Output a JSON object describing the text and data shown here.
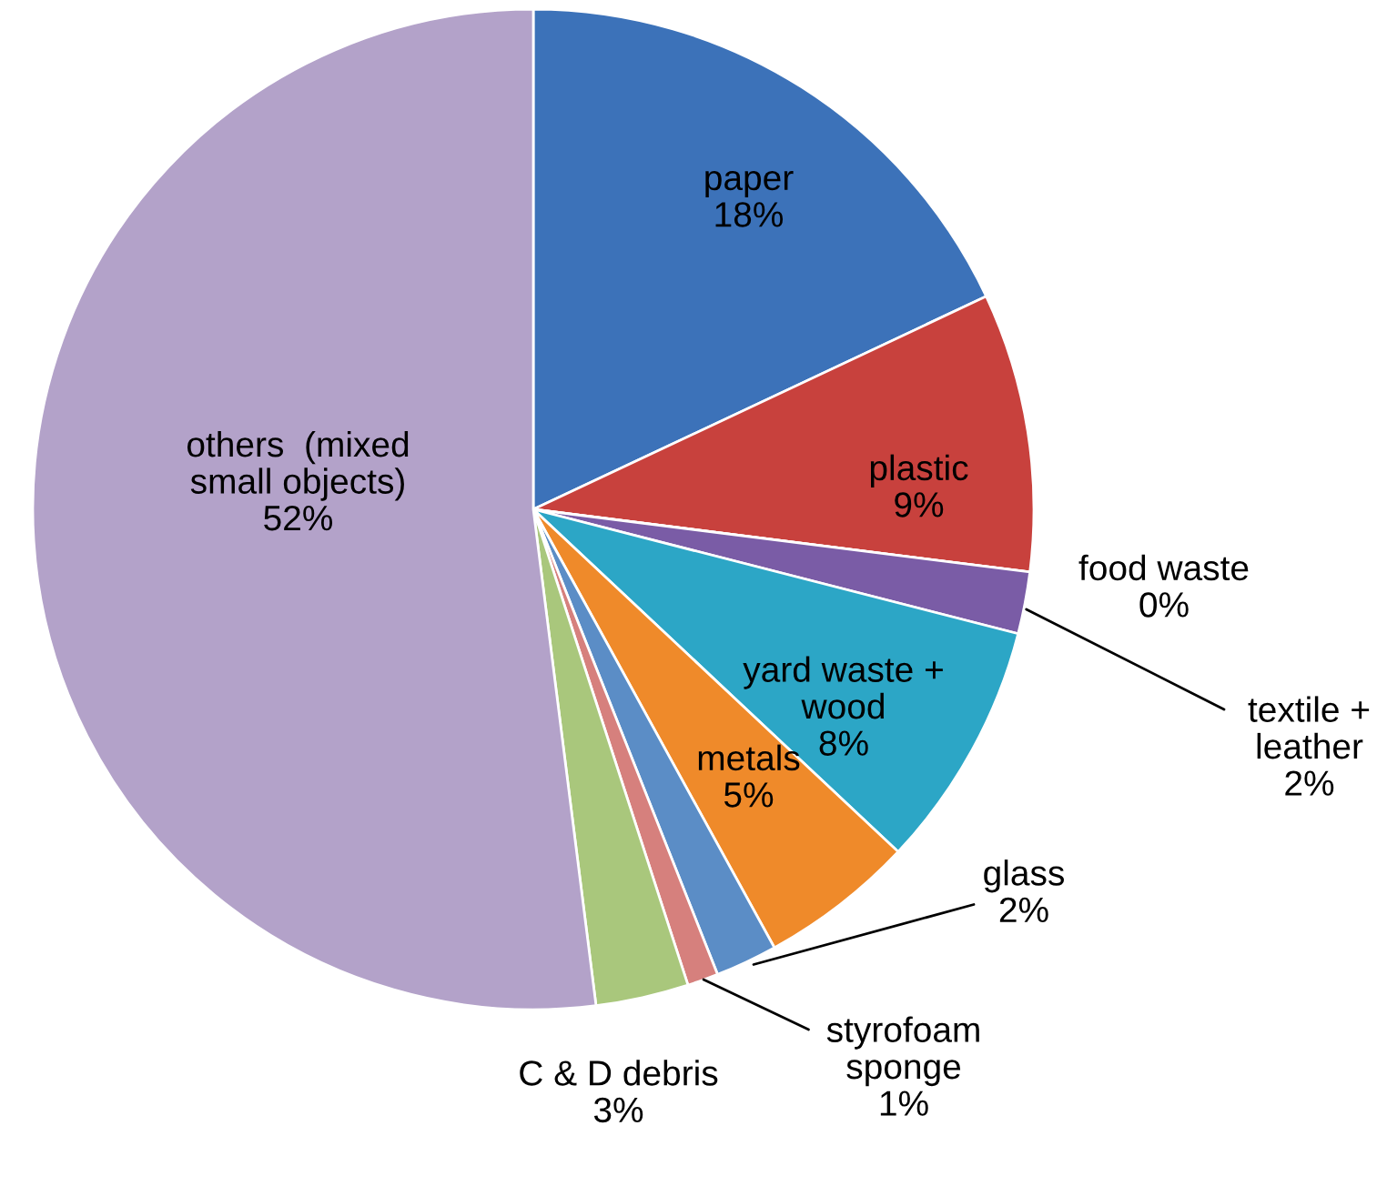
{
  "chart_data": {
    "type": "pie",
    "categories": [
      "paper",
      "plastic",
      "food waste",
      "textile +\nleather",
      "yard waste +\nwood",
      "metals",
      "glass",
      "styrofoam\nsponge",
      "C & D debris",
      "others  (mixed\nsmall objects)"
    ],
    "values": [
      18,
      9,
      0,
      2,
      8,
      5,
      2,
      1,
      3,
      52
    ],
    "value_labels": [
      "18%",
      "9%",
      "0%",
      "2%",
      "8%",
      "5%",
      "2%",
      "1%",
      "3%",
      "52%"
    ],
    "colors": [
      "#3c72b9",
      "#c8413d",
      "#8cab4a",
      "#7a5ca6",
      "#2ca6c6",
      "#ef8a2a",
      "#5b8dc6",
      "#d6807d",
      "#a9c77c",
      "#b3a2c9"
    ]
  }
}
